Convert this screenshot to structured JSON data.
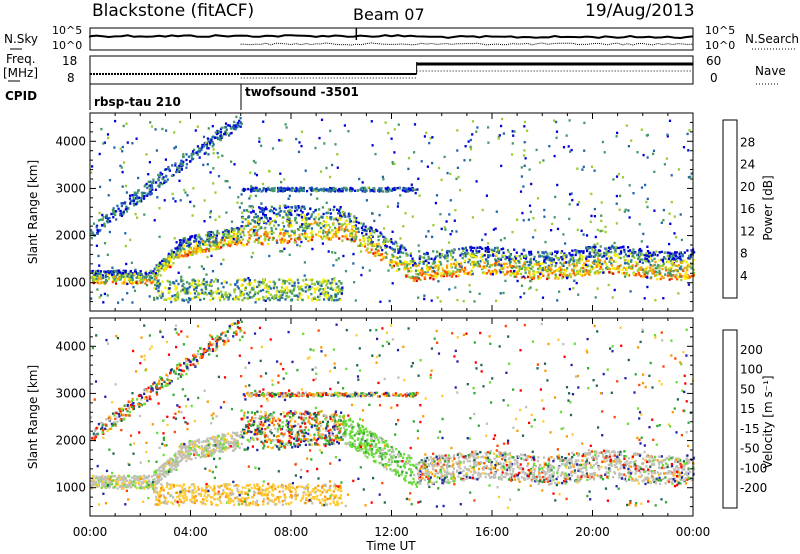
{
  "header": {
    "station": "Blackstone (fitACF)",
    "beam": "Beam 07",
    "date": "19/Aug/2013"
  },
  "noise_panel": {
    "left_label": "N.Sky",
    "right_label": "N.Search",
    "left_ticks": [
      "10^5",
      "10^0"
    ],
    "right_ticks": [
      "10^5",
      "10^0"
    ]
  },
  "freq_panel": {
    "left_label_1": "Freq.",
    "left_label_2": "[MHz]",
    "right_label": "Nave",
    "left_ticks": [
      "18",
      "8"
    ],
    "right_ticks": [
      "60",
      "0"
    ]
  },
  "cpid_panel": {
    "label": "CPID",
    "segments": [
      "rbsp-tau 210",
      "twofsound -3501"
    ]
  },
  "x_axis": {
    "label": "Time UT",
    "ticks": [
      "00:00",
      "04:00",
      "08:00",
      "12:00",
      "16:00",
      "20:00",
      "00:00"
    ]
  },
  "chart_data": [
    {
      "type": "heatmap",
      "name": "power",
      "ylabel": "Slant Range [km]",
      "ylim": [
        400,
        4600
      ],
      "yticks": [
        1000,
        2000,
        3000,
        4000
      ],
      "xlim_hours": [
        0,
        24
      ],
      "colorbar": {
        "label": "Power [dB]",
        "ticks": [
          "28",
          "24",
          "20",
          "16",
          "12",
          "8",
          "4"
        ],
        "colors": [
          "#e00000",
          "#ff5500",
          "#ff9900",
          "#ffee00",
          "#99cc33",
          "#449966",
          "#2266aa",
          "#0000dd"
        ]
      },
      "scatter_bands_km": [
        {
          "t0": 0.0,
          "t1": 2.5,
          "r0": 1000,
          "r1": 1250,
          "level": "high"
        },
        {
          "t0": 2.5,
          "t1": 6.0,
          "r0": 1400,
          "r1": 2000,
          "level": "high"
        },
        {
          "t0": 6.0,
          "t1": 10.0,
          "r0": 1800,
          "r1": 2600,
          "level": "mixed"
        },
        {
          "t0": 10.0,
          "t1": 13.0,
          "r0": 1000,
          "r1": 2200,
          "level": "high"
        },
        {
          "t0": 13.0,
          "t1": 24.0,
          "r0": 1200,
          "r1": 1700,
          "level": "high"
        }
      ]
    },
    {
      "type": "heatmap",
      "name": "velocity",
      "ylabel": "Slant Range [km]",
      "ylim": [
        400,
        4600
      ],
      "yticks": [
        1000,
        2000,
        3000,
        4000
      ],
      "xlim_hours": [
        0,
        24
      ],
      "colorbar": {
        "label": "Velocity [m s⁻¹]",
        "ticks": [
          "200",
          "100",
          "50",
          "15",
          "-15",
          "-50",
          "-100",
          "-200"
        ],
        "colors": [
          "#2222aa",
          "#226655",
          "#33aa33",
          "#66dd33",
          "#c0c0b8",
          "#ffcc33",
          "#ff9900",
          "#ff4400",
          "#ff0000"
        ]
      }
    }
  ]
}
